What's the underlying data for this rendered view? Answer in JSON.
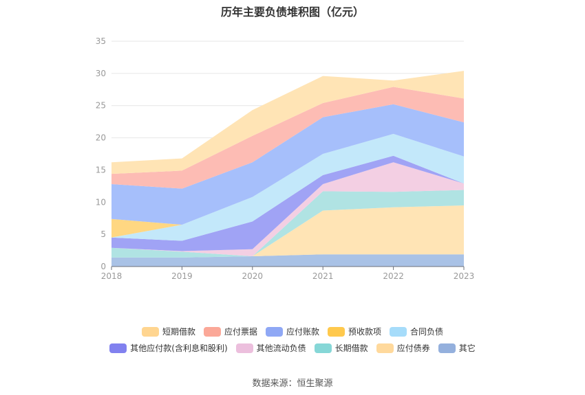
{
  "title": "历年主要负债堆积图（亿元）",
  "source": "数据来源：恒生聚源",
  "chart_data": {
    "type": "area",
    "stacked": true,
    "title": "历年主要负债堆积图（亿元）",
    "categories": [
      "2018",
      "2019",
      "2020",
      "2021",
      "2022",
      "2023"
    ],
    "y_ticks": [
      "0",
      "5",
      "10",
      "15",
      "20",
      "25",
      "30",
      "35"
    ],
    "ylim": [
      0,
      35
    ],
    "grid": true,
    "legend_position": "bottom",
    "series": [
      {
        "name": "其它",
        "color": "#a9c2e6",
        "values": [
          1.4,
          1.4,
          1.6,
          1.9,
          1.9,
          1.9
        ]
      },
      {
        "name": "应付债券",
        "color": "#ffe4b5",
        "values": [
          0.0,
          0.0,
          0.0,
          6.8,
          7.3,
          7.6
        ]
      },
      {
        "name": "长期借款",
        "color": "#b0e3e3",
        "values": [
          1.5,
          0.9,
          0.0,
          3.0,
          2.4,
          2.4
        ]
      },
      {
        "name": "其他流动负债",
        "color": "#f3cfe3",
        "values": [
          0.0,
          0.1,
          1.1,
          1.1,
          4.6,
          1.0
        ]
      },
      {
        "name": "其他应付款(含利息和股利)",
        "color": "#a0a3f5",
        "values": [
          1.6,
          1.6,
          4.3,
          1.4,
          1.0,
          0.0
        ]
      },
      {
        "name": "合同负债",
        "color": "#c3e8fa",
        "values": [
          0.0,
          2.5,
          3.8,
          3.3,
          3.4,
          4.2
        ]
      },
      {
        "name": "预收款项",
        "color": "#ffd782",
        "values": [
          2.9,
          0.0,
          0.0,
          0.0,
          0.0,
          0.0
        ]
      },
      {
        "name": "应付账款",
        "color": "#a6bffb",
        "values": [
          5.4,
          5.6,
          5.4,
          5.7,
          4.6,
          5.3
        ]
      },
      {
        "name": "应付票据",
        "color": "#fdbcb4",
        "values": [
          1.6,
          2.8,
          4.1,
          2.2,
          2.7,
          3.7
        ]
      },
      {
        "name": "短期借款",
        "color": "#ffe4b5",
        "values": [
          1.8,
          1.9,
          4.0,
          4.2,
          1.0,
          4.3
        ]
      }
    ]
  },
  "legend_rows": [
    [
      {
        "name": "短期借款",
        "color": "#ffd590"
      },
      {
        "name": "应付票据",
        "color": "#fba898"
      },
      {
        "name": "应付账款",
        "color": "#8fa8f5"
      },
      {
        "name": "预收款项",
        "color": "#ffc94d"
      },
      {
        "name": "合同负债",
        "color": "#a6dcfa"
      }
    ],
    [
      {
        "name": "其他应付款(含利息和股利)",
        "color": "#8181ef"
      },
      {
        "name": "其他流动负债",
        "color": "#ecbfdd"
      },
      {
        "name": "长期借款",
        "color": "#86d7d7"
      },
      {
        "name": "应付债券",
        "color": "#ffd99c"
      },
      {
        "name": "其它",
        "color": "#94b0dd"
      }
    ]
  ]
}
